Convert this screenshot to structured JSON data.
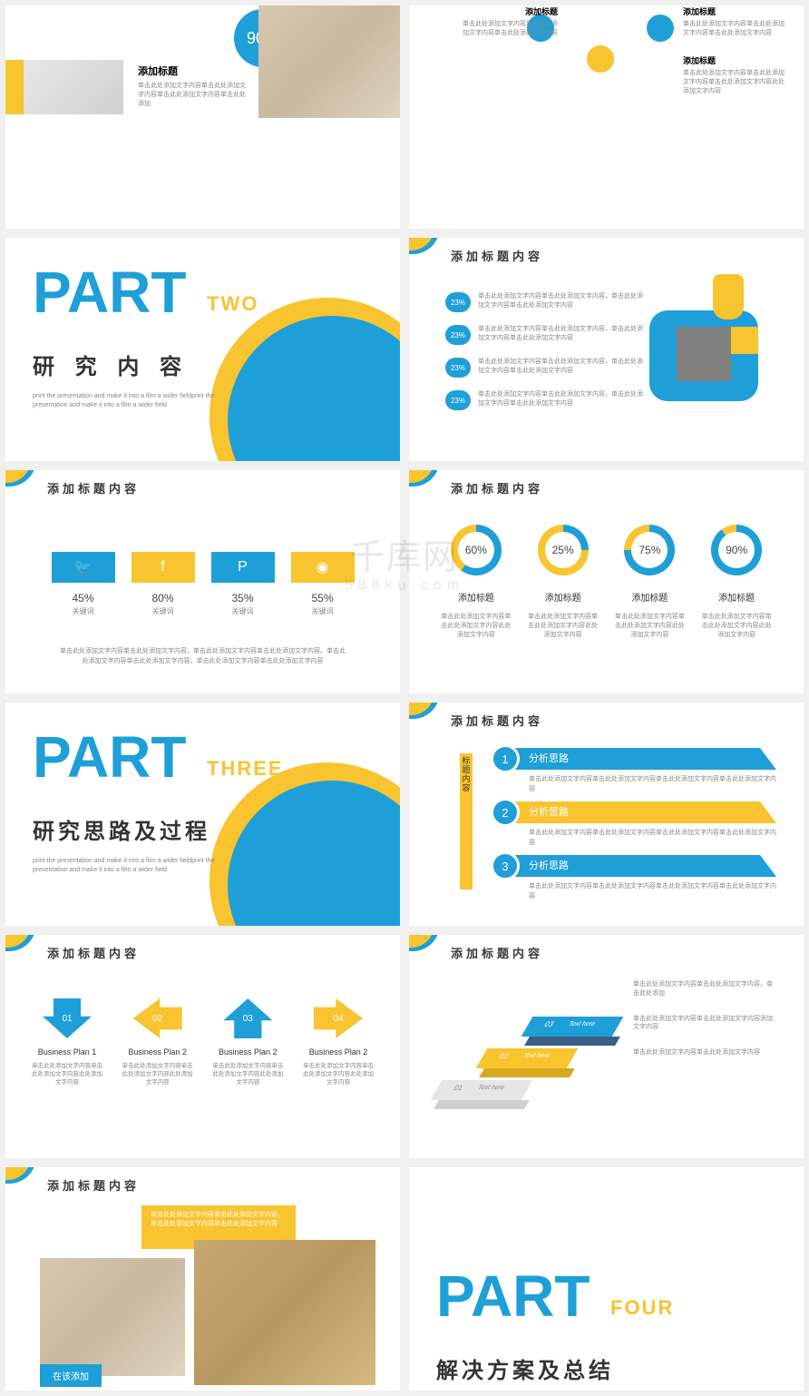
{
  "colors": {
    "blue": "#1f9fd8",
    "yellow": "#f8c430",
    "gray": "#808080",
    "textDark": "#333333",
    "textLight": "#888888"
  },
  "watermark": {
    "main": "千库网",
    "sub": "588ku.com"
  },
  "slideTitle": "添加标题内容",
  "slide1": {
    "percent": "90%",
    "addTitle": "添加标题",
    "desc": "单击此处添加文字内容单击此处添加文字内容单击此处添加文字内容单击此处添加"
  },
  "slide2": {
    "items": [
      {
        "title": "添加标题",
        "desc": "单击此处添加文字内容单击此处添加文字内容单击此处添加文字内容"
      },
      {
        "title": "添加标题",
        "desc": "单击此处添加文字内容单击此处添加文字内容单击此处添加文字内容"
      },
      {
        "title": "添加标题",
        "desc": "单击此处添加文字内容单击此处添加文字内容单击此处添加文字内容此处添加文字内容"
      }
    ]
  },
  "partTwo": {
    "big": "PART",
    "sub": "TWO",
    "chinese": "研 究 内 容",
    "desc": "print the presentation and make it into a film a wider fieldprint the presentation and make it into a film a wider field"
  },
  "slide4": {
    "rows": [
      {
        "pct": "23%",
        "text": "单击此处添加文字内容单击此处添加文字内容，单击此处添加文字内容单击此处添加文字内容"
      },
      {
        "pct": "23%",
        "text": "单击此处添加文字内容单击此处添加文字内容，单击此处添加文字内容单击此处添加文字内容"
      },
      {
        "pct": "23%",
        "text": "单击此处添加文字内容单击此处添加文字内容，单击此处添加文字内容单击此处添加文字内容"
      },
      {
        "pct": "23%",
        "text": "单击此处添加文字内容单击此处添加文字内容，单击此处添加文字内容单击此处添加文字内容"
      }
    ]
  },
  "social": {
    "items": [
      {
        "icon": "twitter",
        "pct": "45%",
        "kw": "关键词",
        "color": "#1f9fd8"
      },
      {
        "icon": "facebook",
        "pct": "80%",
        "kw": "关键词",
        "color": "#f8c430"
      },
      {
        "icon": "pinterest",
        "pct": "35%",
        "kw": "关键词",
        "color": "#1f9fd8"
      },
      {
        "icon": "dribbble",
        "pct": "55%",
        "kw": "关键词",
        "color": "#f8c430"
      }
    ],
    "desc": "单击此处添加文字内容单击此处添加文字内容，单击此处添加文字内容单击此处添加文字内容。单击此处添加文字内容单击此处添加文字内容，单击此处添加文字内容单击此处添加文字内容"
  },
  "donuts": {
    "items": [
      {
        "pct": 60,
        "label": "60%",
        "title": "添加标题",
        "desc": "单击此处添加文字内容单击此处添加文字内容此处添加文字内容"
      },
      {
        "pct": 25,
        "label": "25%",
        "title": "添加标题",
        "desc": "单击此处添加文字内容单击此处添加文字内容此处添加文字内容"
      },
      {
        "pct": 75,
        "label": "75%",
        "title": "添加标题",
        "desc": "单击此处添加文字内容单击此处添加文字内容此处添加文字内容"
      },
      {
        "pct": 90,
        "label": "90%",
        "title": "添加标题",
        "desc": "单击此处添加文字内容单击此处添加文字内容此处添加文字内容"
      }
    ]
  },
  "partThree": {
    "big": "PART",
    "sub": "THREE",
    "chinese": "研究思路及过程",
    "desc": "print the presentation and make it into a film a wider fieldprint the presentation and make it into a film a wider field"
  },
  "steps": {
    "vlabel": "标题内容",
    "items": [
      {
        "n": "1",
        "title": "分析思路",
        "desc": "单击此处添加文字内容单击此处添加文字内容单击此处添加文字内容单击此处添加文字内容"
      },
      {
        "n": "2",
        "title": "分析思路",
        "desc": "单击此处添加文字内容单击此处添加文字内容单击此处添加文字内容单击此处添加文字内容"
      },
      {
        "n": "3",
        "title": "分析思路",
        "desc": "单击此处添加文字内容单击此处添加文字内容单击此处添加文字内容单击此处添加文字内容"
      }
    ]
  },
  "arrows": {
    "items": [
      {
        "n": "01",
        "dir": "down",
        "color": "#1f9fd8",
        "title": "Business Plan 1",
        "desc": "单击此处添加文字内容单击此处添加文字内容此处添加文字内容"
      },
      {
        "n": "02",
        "dir": "left",
        "color": "#f8c430",
        "title": "Business Plan 2",
        "desc": "单击此处添加文字内容单击此处添加文字内容此处添加文字内容"
      },
      {
        "n": "03",
        "dir": "up",
        "color": "#1f9fd8",
        "title": "Business Plan 2",
        "desc": "单击此处添加文字内容单击此处添加文字内容此处添加文字内容"
      },
      {
        "n": "04",
        "dir": "right",
        "color": "#f8c430",
        "title": "Business Plan 2",
        "desc": "单击此处添加文字内容单击此处添加文字内容此处添加文字内容"
      }
    ]
  },
  "iso": {
    "levels": [
      {
        "n": "01",
        "label": "Text here",
        "top": "#e6e6e6",
        "side": "#cfcfcf"
      },
      {
        "n": "02",
        "label": "Text here",
        "top": "#f8c430",
        "side": "#d8a820"
      },
      {
        "n": "03",
        "label": "Text here",
        "top": "#1f9fd8",
        "side": "#3a5f85"
      }
    ],
    "texts": [
      "单击此处添加文字内容单击此处添加文字内容，单击此处添加",
      "单击此处添加文字内容单击此处添加文字内容添加文字内容",
      "单击此处添加文字内容单击此处添加文字内容"
    ]
  },
  "slide11": {
    "caption": "在该添加",
    "desc": "单击此处添加文字内容单击此处添加文字内容，单击此处添加文字内容单击此处添加文字内容"
  },
  "partFour": {
    "big": "PART",
    "sub": "FOUR",
    "chinese": "解决方案及总结"
  }
}
